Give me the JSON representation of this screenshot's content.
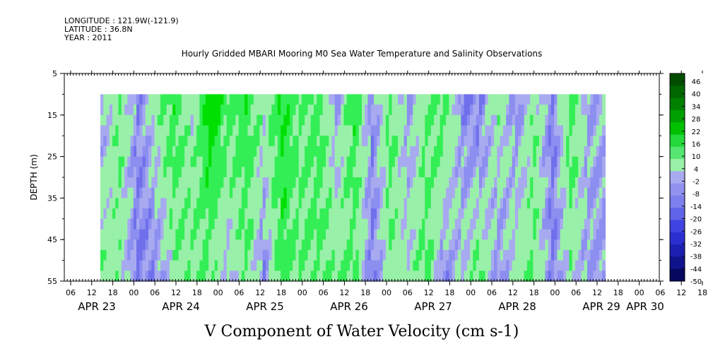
{
  "header": {
    "longitude": "LONGITUDE : 121.9W(-121.9)",
    "latitude": "LATITUDE : 36.8N",
    "year": "YEAR : 2011"
  },
  "chart_data": {
    "type": "heatmap",
    "title": "Hourly Gridded MBARI Mooring M0 Sea Water Temperature and Salinity Observations",
    "xlabel": "V Component of Water Velocity (cm s-1)",
    "ylabel": "DEPTH (m)",
    "y_ticks": [
      5,
      15,
      25,
      35,
      45,
      55
    ],
    "ylim": [
      55,
      5
    ],
    "data_depth_range": [
      10,
      55
    ],
    "x_hour_ticks": [
      "06",
      "12",
      "18",
      "00",
      "06",
      "12",
      "18",
      "00",
      "06",
      "12",
      "18",
      "00",
      "06",
      "12",
      "18",
      "00",
      "06",
      "12",
      "18",
      "00",
      "06",
      "12",
      "18",
      "00",
      "06",
      "12",
      "18",
      "00",
      "06",
      "12",
      "18",
      "00"
    ],
    "x_day_labels": [
      "APR 23",
      "APR 24",
      "APR 25",
      "APR 26",
      "APR 27",
      "APR 28",
      "APR 29",
      "APR 30"
    ],
    "colorbar_labels": [
      "46",
      "40",
      "34",
      "28",
      "22",
      "16",
      "10",
      "4",
      "-2",
      "-8",
      "-14",
      "-20",
      "-26",
      "-32",
      "-38",
      "-44",
      "-50"
    ],
    "colorbar_range": [
      -50,
      52
    ],
    "colors": {
      "strong_positive": "#00e000",
      "positive": "#33ee55",
      "weak_positive": "#99f0a8",
      "weak_negative": "#a8aaf0",
      "negative": "#8c8ef0",
      "strong_negative": "#7070ec"
    },
    "v_column_profiles": [
      {
        "time": "APR 23 12",
        "v_top": -4,
        "v_bottom": 6
      },
      {
        "time": "APR 23 18",
        "v_top": 8,
        "v_bottom": 4
      },
      {
        "time": "APR 24 00",
        "v_top": -6,
        "v_bottom": -8
      },
      {
        "time": "APR 24 06",
        "v_top": 4,
        "v_bottom": -6
      },
      {
        "time": "APR 24 12",
        "v_top": 14,
        "v_bottom": 4
      },
      {
        "time": "APR 24 18",
        "v_top": 2,
        "v_bottom": 8
      },
      {
        "time": "APR 25 00",
        "v_top": 22,
        "v_bottom": 6
      },
      {
        "time": "APR 25 06",
        "v_top": 10,
        "v_bottom": -2
      },
      {
        "time": "APR 25 12",
        "v_top": 14,
        "v_bottom": 8
      },
      {
        "time": "APR 25 18",
        "v_top": 4,
        "v_bottom": -6
      },
      {
        "time": "APR 26 00",
        "v_top": 16,
        "v_bottom": 12
      },
      {
        "time": "APR 26 06",
        "v_top": 8,
        "v_bottom": 6
      },
      {
        "time": "APR 26 12",
        "v_top": 12,
        "v_bottom": 10
      },
      {
        "time": "APR 26 18",
        "v_top": -4,
        "v_bottom": 6
      },
      {
        "time": "APR 27 00",
        "v_top": 14,
        "v_bottom": 8
      },
      {
        "time": "APR 27 06",
        "v_top": -6,
        "v_bottom": -8
      },
      {
        "time": "APR 27 12",
        "v_top": 10,
        "v_bottom": 6
      },
      {
        "time": "APR 27 18",
        "v_top": -4,
        "v_bottom": 2
      },
      {
        "time": "APR 28 00",
        "v_top": 6,
        "v_bottom": 10
      },
      {
        "time": "APR 28 06",
        "v_top": 12,
        "v_bottom": -6
      },
      {
        "time": "APR 28 12",
        "v_top": -6,
        "v_bottom": 2
      },
      {
        "time": "APR 28 18",
        "v_top": -8,
        "v_bottom": 8
      },
      {
        "time": "APR 29 00",
        "v_top": 6,
        "v_bottom": -6
      },
      {
        "time": "APR 29 06",
        "v_top": -6,
        "v_bottom": 4
      },
      {
        "time": "APR 29 12",
        "v_top": 6,
        "v_bottom": 8
      },
      {
        "time": "APR 29 18",
        "v_top": -8,
        "v_bottom": -8
      },
      {
        "time": "APR 30 00",
        "v_top": 12,
        "v_bottom": 4
      },
      {
        "time": "APR 30 06",
        "v_top": -2,
        "v_bottom": -4
      }
    ]
  }
}
